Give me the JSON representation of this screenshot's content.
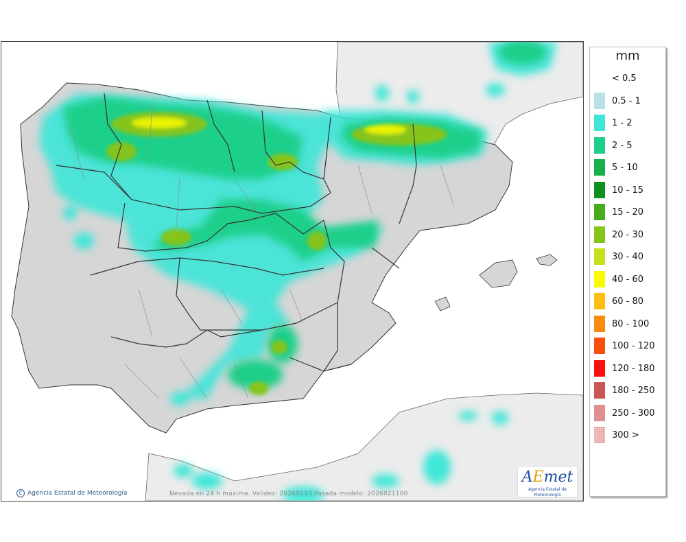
{
  "legend": {
    "unit": "mm",
    "items": [
      {
        "label": "< 0.5",
        "color": "#ffffff"
      },
      {
        "label": "0.5 - 1",
        "color": "#b8e0e8"
      },
      {
        "label": "1 - 2",
        "color": "#3fe6d8"
      },
      {
        "label": "2 - 5",
        "color": "#1ecf8a"
      },
      {
        "label": "5 - 10",
        "color": "#17b04a"
      },
      {
        "label": "10 - 15",
        "color": "#0f8f1c"
      },
      {
        "label": "15 - 20",
        "color": "#4aab1e"
      },
      {
        "label": "20 - 30",
        "color": "#86c41a"
      },
      {
        "label": "30 - 40",
        "color": "#c7e01c"
      },
      {
        "label": "40 - 60",
        "color": "#fbfb00"
      },
      {
        "label": "60 - 80",
        "color": "#fbbf12"
      },
      {
        "label": "80 - 100",
        "color": "#fb8a10"
      },
      {
        "label": "100 - 120",
        "color": "#fb4f10"
      },
      {
        "label": "120 - 180",
        "color": "#fb1010"
      },
      {
        "label": "180 - 250",
        "color": "#cc5555"
      },
      {
        "label": "250 - 300",
        "color": "#e09090"
      },
      {
        "label": "300 >",
        "color": "#f4c8c8"
      }
    ]
  },
  "footer": {
    "credit": "Agencia Estatal de Meteorología",
    "credit_symbol": "C",
    "caption": "Nevada en 24 h máxima. Validez: 20260213 Pasada modelo: 2026021100"
  },
  "logo": {
    "mark_a": "A",
    "mark_e": "E",
    "mark_rest": "met",
    "subtitle": "Agencia Estatal de Meteorología"
  }
}
